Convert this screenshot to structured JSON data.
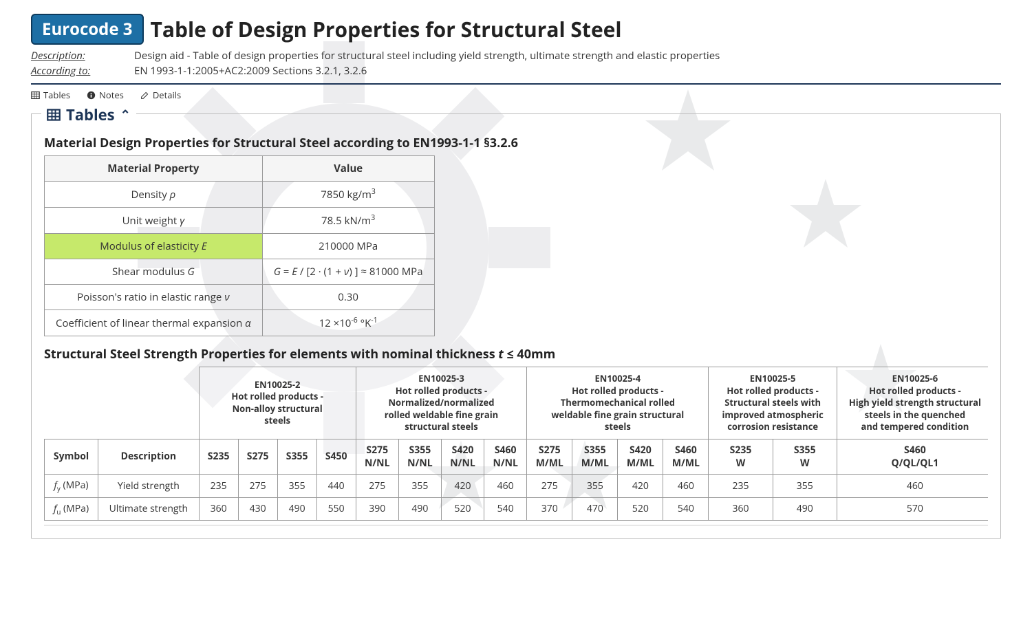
{
  "colors": {
    "badge_bg": "#1d6fa5",
    "badge_border": "#0d3a5c",
    "accent": "#1d3557",
    "highlight": "#c6e96b",
    "border": "#999999"
  },
  "header": {
    "badge": "Eurocode 3",
    "title": "Table of Design Properties for Structural Steel",
    "desc_label": "Description:",
    "desc_text": "Design aid - Table of design properties for structural steel including yield strength, ultimate strength and elastic properties",
    "acc_label": "According to:",
    "acc_text": "EN 1993-1-1:2005+AC2:2009 Sections 3.2.1, 3.2.6"
  },
  "toolbar": {
    "tables": "Tables",
    "notes": "Notes",
    "details": "Details"
  },
  "section_title": "Tables",
  "table1": {
    "heading": "Material Design Properties for Structural Steel according to EN1993-1-1 §3.2.6",
    "col1": "Material Property",
    "col2": "Value",
    "rows": [
      {
        "prop_html": "Density <span class='ital'>ρ</span>",
        "val_html": "7850 kg/m<sup>3</sup>",
        "hl": false
      },
      {
        "prop_html": "Unit weight <span class='ital'>γ</span>",
        "val_html": "78.5 kN/m<sup>3</sup>",
        "hl": false
      },
      {
        "prop_html": "Modulus of elasticity <span class='ital'>E</span>",
        "val_html": "210000 MPa",
        "hl": true
      },
      {
        "prop_html": "Shear modulus <span class='ital'>G</span>",
        "val_html": "<span class='ital'>G</span> = <span class='ital'>E</span> / [2 · (1 + <span class='ital'>ν</span>) ] ≈ 81000 MPa",
        "hl": false
      },
      {
        "prop_html": "Poisson's ratio in elastic range <span class='ital'>ν</span>",
        "val_html": "0.30",
        "hl": false
      },
      {
        "prop_html": "Coefficient of linear thermal expansion <span class='ital'>α</span>",
        "val_html": "12 ×10<sup>-6</sup> °K<sup>-1</sup>",
        "hl": false
      }
    ]
  },
  "table2": {
    "heading_html": "Structural Steel Strength Properties for elements with nominal thickness <span class='ital'>t</span> ≤ 40mm",
    "symbol_label": "Symbol",
    "desc_label": "Description",
    "groups": [
      {
        "title_html": "EN10025-2<br>Hot rolled products -<br>Non-alloy structural<br>steels",
        "grades": [
          "S235",
          "S275",
          "S355",
          "S450"
        ]
      },
      {
        "title_html": "EN10025-3<br>Hot rolled products -<br>Normalized/normalized<br>rolled weldable fine grain<br>structural steels",
        "grades": [
          "S275 N/NL",
          "S355 N/NL",
          "S420 N/NL",
          "S460 N/NL"
        ]
      },
      {
        "title_html": "EN10025-4<br>Hot rolled products -<br>Thermomechanical rolled<br>weldable fine grain structural<br>steels",
        "grades": [
          "S275 M/ML",
          "S355 M/ML",
          "S420 M/ML",
          "S460 M/ML"
        ]
      },
      {
        "title_html": "EN10025-5<br>Hot rolled products -<br>Structural steels with<br>improved atmospheric<br>corrosion resistance",
        "grades": [
          "S235 W",
          "S355 W"
        ]
      },
      {
        "title_html": "EN10025-6<br>Hot rolled products -<br>High yield strength structural<br>steels in the quenched<br>and tempered condition",
        "grades": [
          "S460 Q/QL/QL1"
        ]
      }
    ],
    "rows": [
      {
        "symbol_html": "<span class='ital'>f</span><sub>y</sub> (MPa)",
        "desc": "Yield strength",
        "values": [
          235,
          275,
          355,
          440,
          275,
          355,
          420,
          460,
          275,
          355,
          420,
          460,
          235,
          355,
          460
        ]
      },
      {
        "symbol_html": "<span class='ital'>f</span><sub>u</sub> (MPa)",
        "desc": "Ultimate strength",
        "values": [
          360,
          430,
          490,
          550,
          390,
          490,
          520,
          540,
          370,
          470,
          520,
          540,
          360,
          490,
          570
        ]
      }
    ]
  }
}
